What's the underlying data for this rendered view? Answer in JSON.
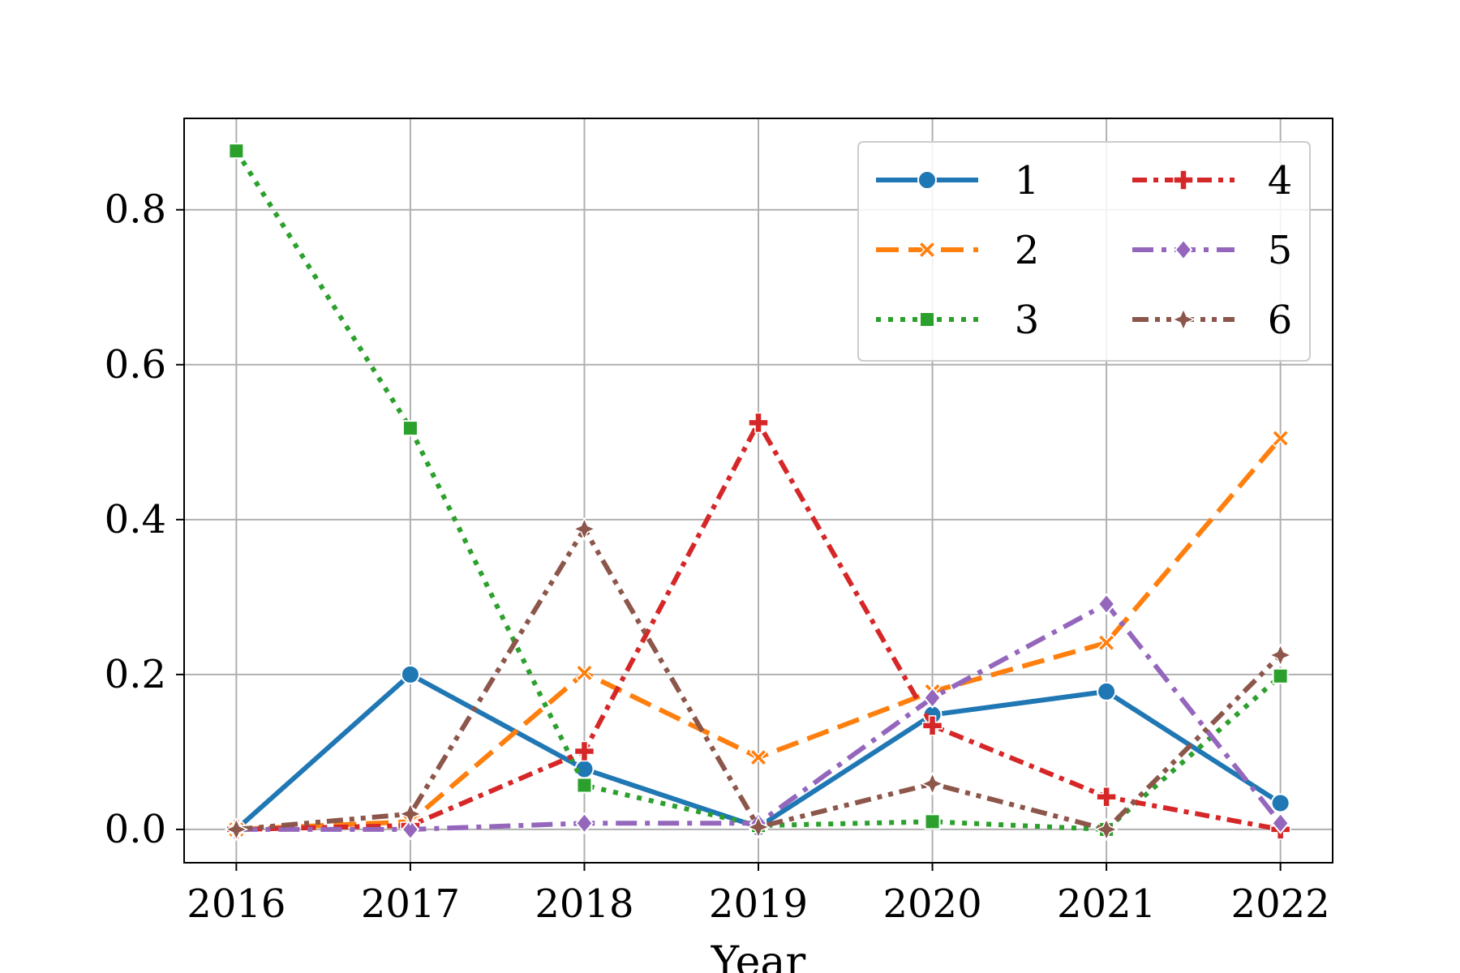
{
  "chart_data": {
    "type": "line",
    "title": "",
    "xlabel": "Year",
    "ylabel": "",
    "x": [
      2016,
      2017,
      2018,
      2019,
      2020,
      2021,
      2022
    ],
    "xlim": [
      2015.7,
      2022.3
    ],
    "ylim": [
      -0.043,
      0.918
    ],
    "yticks": [
      0.0,
      0.2,
      0.4,
      0.6,
      0.8
    ],
    "ytick_labels": [
      "0.0",
      "0.2",
      "0.4",
      "0.6",
      "0.8"
    ],
    "xtick_labels": [
      "2016",
      "2017",
      "2018",
      "2019",
      "2020",
      "2021",
      "2022"
    ],
    "grid": true,
    "legend": {
      "position": "upper-right",
      "columns": 2
    },
    "series": [
      {
        "name": "1",
        "color": "#1f77b4",
        "dash": "solid",
        "marker": "circle",
        "values": [
          0.0,
          0.2,
          0.078,
          0.003,
          0.148,
          0.178,
          0.034
        ]
      },
      {
        "name": "2",
        "color": "#ff7f0e",
        "dash": "dashed",
        "marker": "x",
        "values": [
          0.0,
          0.01,
          0.202,
          0.093,
          0.178,
          0.241,
          0.505
        ]
      },
      {
        "name": "3",
        "color": "#2ca02c",
        "dash": "dotted",
        "marker": "square",
        "values": [
          0.876,
          0.518,
          0.057,
          0.005,
          0.01,
          0.0,
          0.198
        ]
      },
      {
        "name": "4",
        "color": "#d62728",
        "dash": "dashdot-dense",
        "marker": "plus",
        "values": [
          0.0,
          0.005,
          0.101,
          0.525,
          0.134,
          0.042,
          0.0
        ]
      },
      {
        "name": "5",
        "color": "#9467bd",
        "dash": "dashdot",
        "marker": "diamond",
        "values": [
          0.0,
          0.0,
          0.008,
          0.008,
          0.17,
          0.291,
          0.008
        ]
      },
      {
        "name": "6",
        "color": "#8c564b",
        "dash": "dashdotdot",
        "marker": "star",
        "values": [
          0.0,
          0.02,
          0.388,
          0.003,
          0.059,
          0.0,
          0.225
        ]
      }
    ]
  }
}
